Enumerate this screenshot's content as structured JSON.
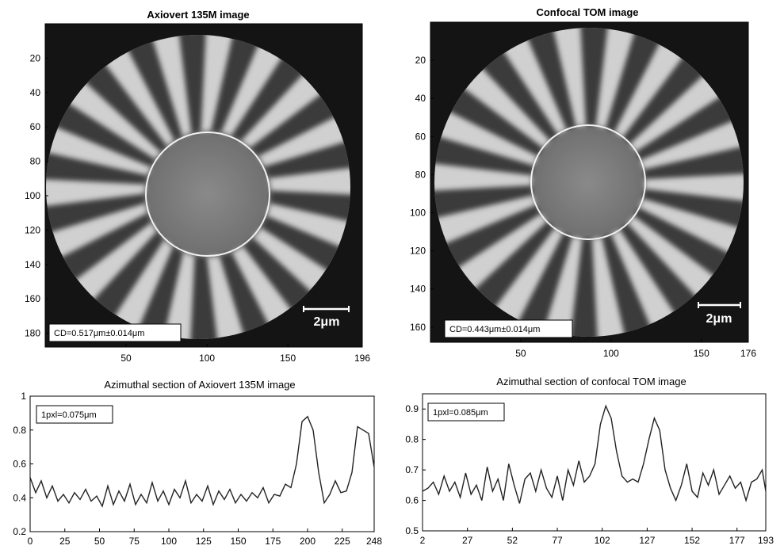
{
  "chart_data": [
    {
      "type": "image",
      "title": "Axiovert 135M image",
      "xticks": [
        "50",
        "100",
        "150",
        "196"
      ],
      "yticks": [
        "20",
        "40",
        "60",
        "80",
        "100",
        "120",
        "140",
        "160",
        "180"
      ],
      "x_range": [
        0,
        196
      ],
      "y_range": [
        0,
        188
      ],
      "annotation": "CD=0.517μm±0.014μm",
      "scale_label": "2μm",
      "spokes": 18
    },
    {
      "type": "image",
      "title": "Confocal TOM image",
      "xticks": [
        "50",
        "100",
        "150",
        "176"
      ],
      "yticks": [
        "20",
        "40",
        "60",
        "80",
        "100",
        "120",
        "140",
        "160"
      ],
      "x_range": [
        0,
        176
      ],
      "y_range": [
        0,
        168
      ],
      "annotation": "CD=0.443μm±0.014μm",
      "scale_label": "2μm",
      "spokes": 18
    },
    {
      "type": "line",
      "title": "Azimuthal section of Axiovert 135M image",
      "annotation": "1pxl=0.075μm",
      "xlim": [
        0,
        248
      ],
      "ylim": [
        0.2,
        1
      ],
      "xticks": [
        "0",
        "25",
        "50",
        "75",
        "100",
        "125",
        "150",
        "175",
        "200",
        "225",
        "248"
      ],
      "yticks": [
        "0.2",
        "0.4",
        "0.6",
        "0.8",
        "1"
      ],
      "x": [
        0,
        4,
        8,
        12,
        16,
        20,
        24,
        28,
        32,
        36,
        40,
        44,
        48,
        52,
        56,
        60,
        64,
        68,
        72,
        76,
        80,
        84,
        88,
        92,
        96,
        100,
        104,
        108,
        112,
        116,
        120,
        124,
        128,
        132,
        136,
        140,
        144,
        148,
        152,
        156,
        160,
        164,
        168,
        172,
        176,
        180,
        184,
        188,
        192,
        196,
        200,
        204,
        208,
        212,
        216,
        220,
        224,
        228,
        232,
        236,
        240,
        244,
        248
      ],
      "y": [
        0.52,
        0.43,
        0.5,
        0.4,
        0.47,
        0.38,
        0.42,
        0.37,
        0.43,
        0.39,
        0.45,
        0.38,
        0.41,
        0.35,
        0.47,
        0.36,
        0.44,
        0.38,
        0.48,
        0.36,
        0.42,
        0.37,
        0.49,
        0.38,
        0.44,
        0.36,
        0.45,
        0.4,
        0.5,
        0.37,
        0.42,
        0.38,
        0.47,
        0.36,
        0.44,
        0.39,
        0.45,
        0.37,
        0.42,
        0.38,
        0.43,
        0.4,
        0.46,
        0.37,
        0.42,
        0.41,
        0.48,
        0.46,
        0.6,
        0.85,
        0.88,
        0.8,
        0.55,
        0.37,
        0.42,
        0.5,
        0.43,
        0.44,
        0.55,
        0.82,
        0.8,
        0.78,
        0.58
      ]
    },
    {
      "type": "line",
      "title": "Azimuthal section of confocal TOM image",
      "annotation": "1pxl=0.085μm",
      "xlim": [
        2,
        193
      ],
      "ylim": [
        0.5,
        0.95
      ],
      "xticks": [
        "2",
        "27",
        "52",
        "77",
        "102",
        "127",
        "152",
        "177",
        "193"
      ],
      "yticks": [
        "0.5",
        "0.6",
        "0.7",
        "0.8",
        "0.9"
      ],
      "x": [
        2,
        5,
        8,
        11,
        14,
        17,
        20,
        23,
        26,
        29,
        32,
        35,
        38,
        41,
        44,
        47,
        50,
        53,
        56,
        59,
        62,
        65,
        68,
        71,
        74,
        77,
        80,
        83,
        86,
        89,
        92,
        95,
        98,
        101,
        104,
        107,
        110,
        113,
        116,
        119,
        122,
        125,
        128,
        131,
        134,
        137,
        140,
        143,
        146,
        149,
        152,
        155,
        158,
        161,
        164,
        167,
        170,
        173,
        176,
        179,
        182,
        185,
        188,
        191,
        193
      ],
      "y": [
        0.63,
        0.64,
        0.66,
        0.62,
        0.68,
        0.63,
        0.66,
        0.61,
        0.69,
        0.62,
        0.65,
        0.6,
        0.71,
        0.63,
        0.67,
        0.6,
        0.72,
        0.65,
        0.59,
        0.67,
        0.69,
        0.63,
        0.7,
        0.64,
        0.61,
        0.68,
        0.6,
        0.7,
        0.65,
        0.73,
        0.66,
        0.68,
        0.72,
        0.85,
        0.91,
        0.87,
        0.76,
        0.68,
        0.66,
        0.67,
        0.66,
        0.72,
        0.8,
        0.87,
        0.83,
        0.7,
        0.64,
        0.6,
        0.65,
        0.72,
        0.63,
        0.61,
        0.69,
        0.65,
        0.7,
        0.62,
        0.65,
        0.68,
        0.64,
        0.66,
        0.6,
        0.66,
        0.67,
        0.7,
        0.63
      ]
    }
  ]
}
